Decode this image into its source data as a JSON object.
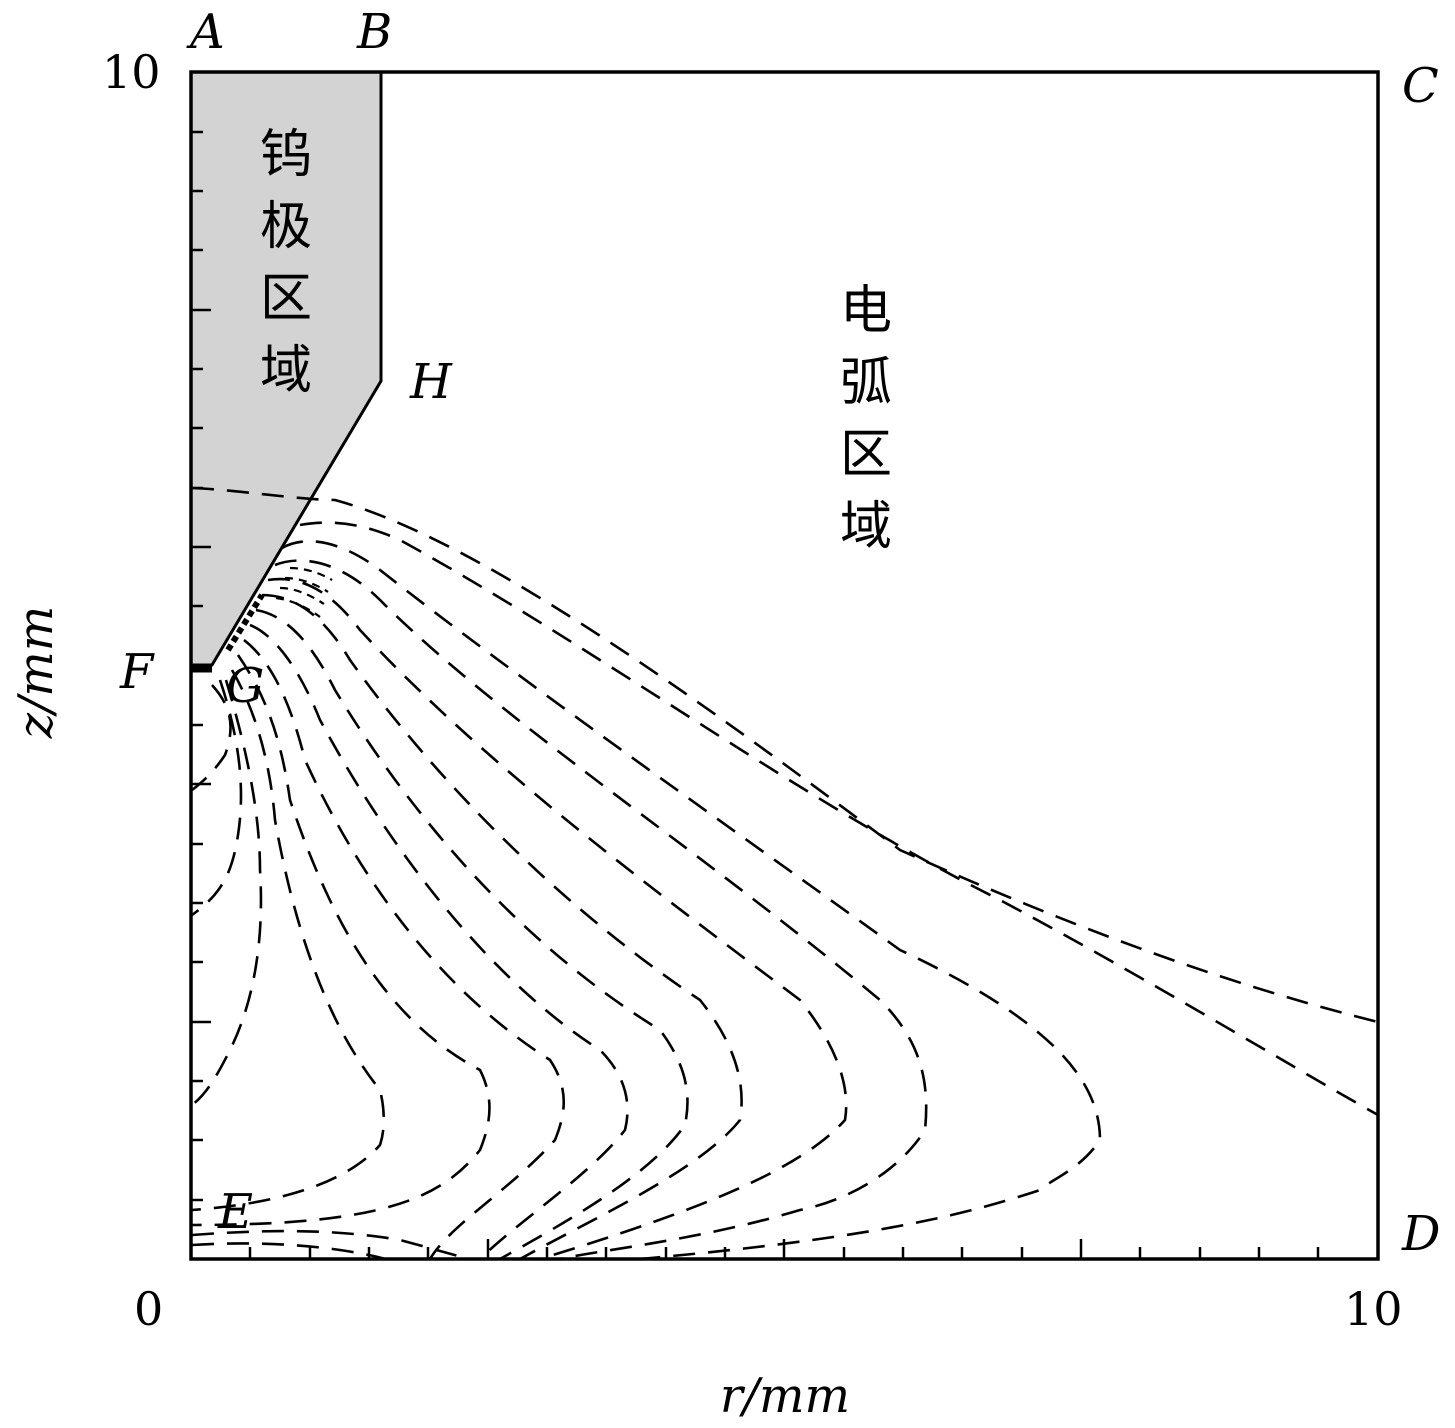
{
  "diagram": {
    "axes": {
      "x": {
        "label": "r/mm",
        "ticks": [
          "0",
          "10"
        ],
        "range": [
          0,
          10
        ]
      },
      "y": {
        "label": "z/mm",
        "ticks": [
          "10"
        ],
        "range": [
          0,
          10
        ]
      }
    },
    "point_labels": {
      "A": "A",
      "B": "B",
      "C": "C",
      "D": "D",
      "E": "E",
      "F": "F",
      "G": "G",
      "H": "H"
    },
    "regions": {
      "electrode": {
        "label_chars": [
          "钨",
          "极",
          "区",
          "域"
        ],
        "fill": "#d3d3d3"
      },
      "arc": {
        "label_chars": [
          "电",
          "弧",
          "区",
          "域"
        ]
      }
    },
    "colors": {
      "line": "#000000",
      "electrode_fill": "#d3d3d3",
      "background": "#ffffff"
    }
  }
}
